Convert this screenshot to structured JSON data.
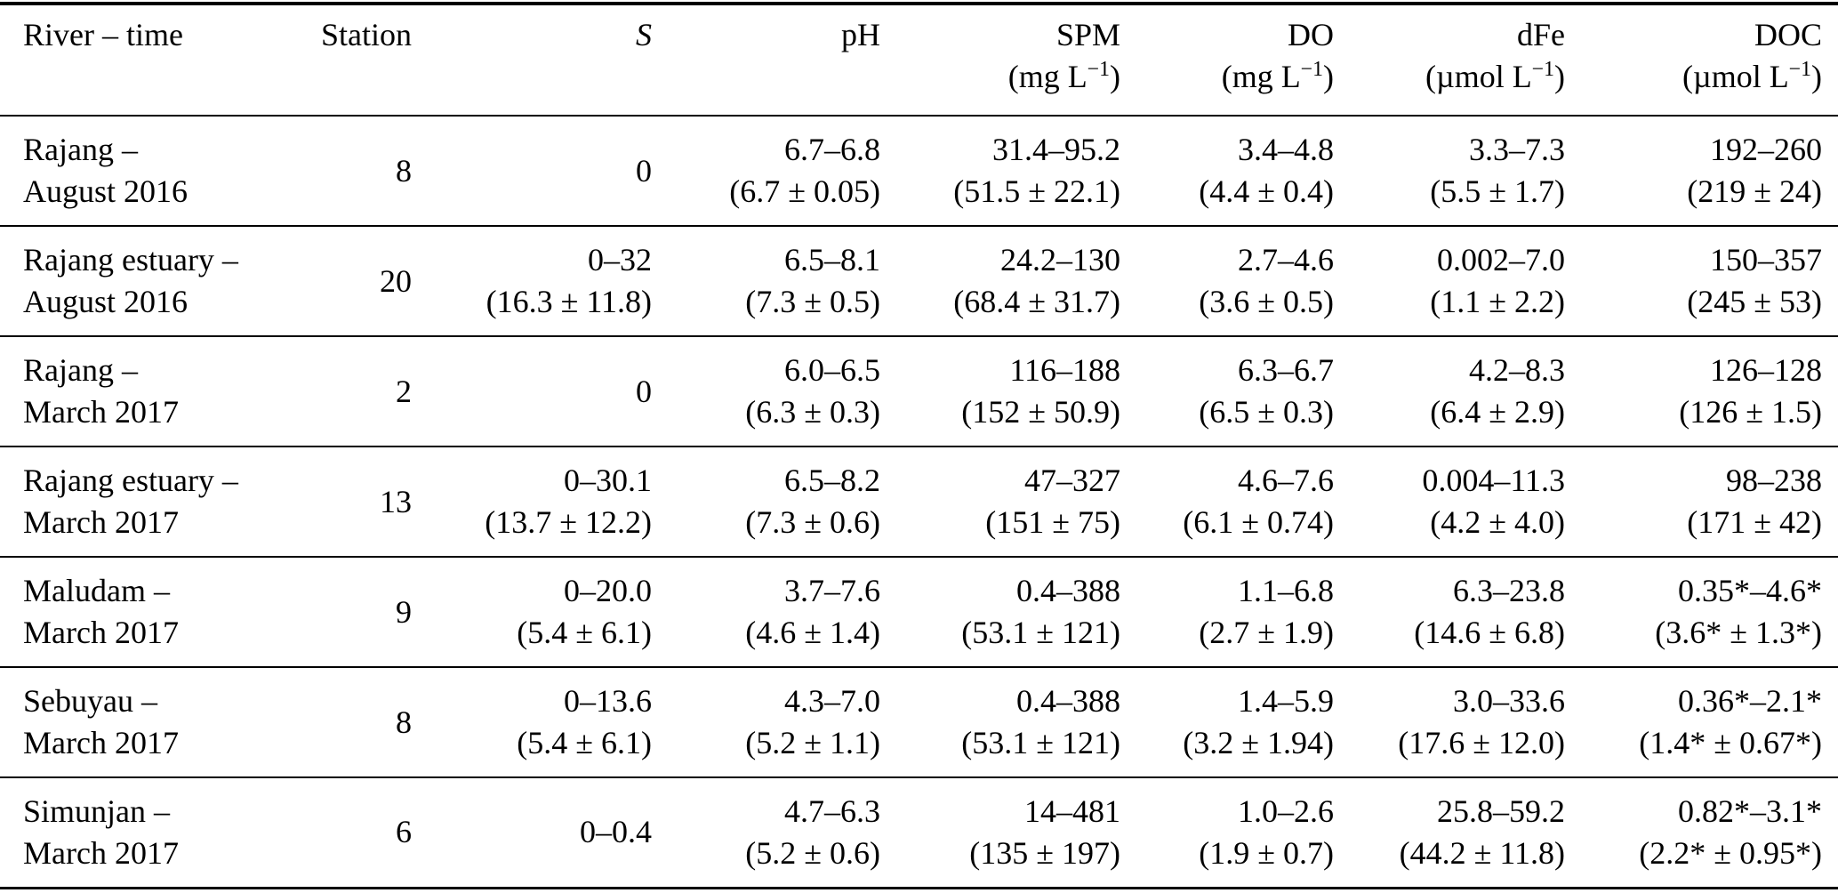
{
  "table": {
    "columns": [
      {
        "label": "River – time",
        "unit": ""
      },
      {
        "label": "Station",
        "unit": ""
      },
      {
        "label": "S",
        "unit": ""
      },
      {
        "label": "pH",
        "unit": ""
      },
      {
        "label": "SPM",
        "unit": "(mg L^-1)"
      },
      {
        "label": "DO",
        "unit": "(mg L^-1)"
      },
      {
        "label": "dFe",
        "unit": "(µmol L^-1)"
      },
      {
        "label": "DOC",
        "unit": "(µmol L^-1)"
      }
    ],
    "rows": [
      {
        "river": [
          "Rajang –",
          "August 2016"
        ],
        "station": "8",
        "s": [
          "0",
          ""
        ],
        "ph": [
          "6.7–6.8",
          "(6.7 ± 0.05)"
        ],
        "spm": [
          "31.4–95.2",
          "(51.5 ± 22.1)"
        ],
        "do": [
          "3.4–4.8",
          "(4.4 ± 0.4)"
        ],
        "dfe": [
          "3.3–7.3",
          "(5.5 ± 1.7)"
        ],
        "doc": [
          "192–260",
          "(219 ± 24)"
        ]
      },
      {
        "river": [
          "Rajang estuary –",
          "August 2016"
        ],
        "station": "20",
        "s": [
          "0–32",
          "(16.3 ± 11.8)"
        ],
        "ph": [
          "6.5–8.1",
          "(7.3 ± 0.5)"
        ],
        "spm": [
          "24.2–130",
          "(68.4 ± 31.7)"
        ],
        "do": [
          "2.7–4.6",
          "(3.6 ± 0.5)"
        ],
        "dfe": [
          "0.002–7.0",
          "(1.1 ± 2.2)"
        ],
        "doc": [
          "150–357",
          "(245 ± 53)"
        ]
      },
      {
        "river": [
          "Rajang –",
          "March 2017"
        ],
        "station": "2",
        "s": [
          "0",
          ""
        ],
        "ph": [
          "6.0–6.5",
          "(6.3 ± 0.3)"
        ],
        "spm": [
          "116–188",
          "(152 ± 50.9)"
        ],
        "do": [
          "6.3–6.7",
          "(6.5 ± 0.3)"
        ],
        "dfe": [
          "4.2–8.3",
          "(6.4 ± 2.9)"
        ],
        "doc": [
          "126–128",
          "(126 ± 1.5)"
        ]
      },
      {
        "river": [
          "Rajang estuary –",
          "March 2017"
        ],
        "station": "13",
        "s": [
          "0–30.1",
          "(13.7 ± 12.2)"
        ],
        "ph": [
          "6.5–8.2",
          "(7.3 ± 0.6)"
        ],
        "spm": [
          "47–327",
          "(151 ± 75)"
        ],
        "do": [
          "4.6–7.6",
          "(6.1 ± 0.74)"
        ],
        "dfe": [
          "0.004–11.3",
          "(4.2 ± 4.0)"
        ],
        "doc": [
          "98–238",
          "(171 ± 42)"
        ]
      },
      {
        "river": [
          "Maludam –",
          "March 2017"
        ],
        "station": "9",
        "s": [
          "0–20.0",
          "(5.4 ± 6.1)"
        ],
        "ph": [
          "3.7–7.6",
          "(4.6 ± 1.4)"
        ],
        "spm": [
          "0.4–388",
          "(53.1 ± 121)"
        ],
        "do": [
          "1.1–6.8",
          "(2.7 ± 1.9)"
        ],
        "dfe": [
          "6.3–23.8",
          "(14.6 ± 6.8)"
        ],
        "doc": [
          "0.35*–4.6*",
          "(3.6* ± 1.3*)"
        ]
      },
      {
        "river": [
          "Sebuyau –",
          "March 2017"
        ],
        "station": "8",
        "s": [
          "0–13.6",
          "(5.4 ± 6.1)"
        ],
        "ph": [
          "4.3–7.0",
          "(5.2 ± 1.1)"
        ],
        "spm": [
          "0.4–388",
          "(53.1 ± 121)"
        ],
        "do": [
          "1.4–5.9",
          "(3.2 ± 1.94)"
        ],
        "dfe": [
          "3.0–33.6",
          "(17.6 ± 12.0)"
        ],
        "doc": [
          "0.36*–2.1*",
          "(1.4* ± 0.67*)"
        ]
      },
      {
        "river": [
          "Simunjan –",
          "March 2017"
        ],
        "station": "6",
        "s": [
          "0–0.4",
          ""
        ],
        "ph": [
          "4.7–6.3",
          "(5.2 ± 0.6)"
        ],
        "spm": [
          "14–481",
          "(135 ± 197)"
        ],
        "do": [
          "1.0–2.6",
          "(1.9 ± 0.7)"
        ],
        "dfe": [
          "25.8–59.2",
          "(44.2 ± 11.8)"
        ],
        "doc": [
          "0.82*–3.1*",
          "(2.2* ± 0.95*)"
        ]
      }
    ]
  }
}
